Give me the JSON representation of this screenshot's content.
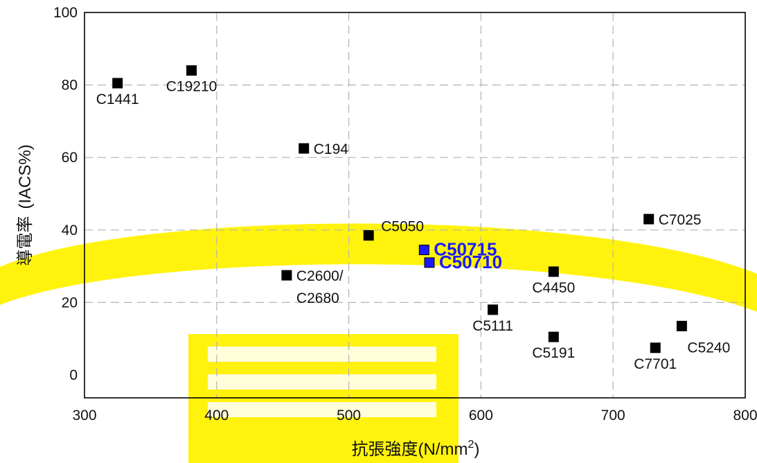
{
  "chart_data": {
    "type": "scatter",
    "xlabel": "抗張強度(N/mm²)",
    "xlabel_main": "抗張強度",
    "xlabel_unit_open": "(N/mm",
    "xlabel_unit_sup": "2",
    "xlabel_unit_close": ")",
    "ylabel": "導電率 (IACS%)",
    "ylabel_cjk": "導電率",
    "ylabel_unit": "(IACS%)",
    "xlim": [
      300,
      800
    ],
    "ylim": [
      0,
      100
    ],
    "x_ticks": [
      300,
      400,
      500,
      600,
      700,
      800
    ],
    "y_ticks": [
      0,
      20,
      40,
      60,
      80,
      100
    ],
    "grid": true,
    "points": [
      {
        "label": "C1441",
        "x": 325,
        "y": 80.5,
        "highlight": false,
        "anchor": "below"
      },
      {
        "label": "C19210",
        "x": 381,
        "y": 84,
        "highlight": false,
        "anchor": "below"
      },
      {
        "label": "C194",
        "x": 466,
        "y": 62.5,
        "highlight": false,
        "anchor": "right"
      },
      {
        "label": "C5050",
        "x": 515,
        "y": 38.5,
        "highlight": false,
        "anchor": "upper-right"
      },
      {
        "label": "C2600/\nC2680",
        "x": 453,
        "y": 27.5,
        "highlight": false,
        "anchor": "right"
      },
      {
        "label": "C50715",
        "x": 557,
        "y": 34.5,
        "highlight": true,
        "anchor": "right"
      },
      {
        "label": "C50710",
        "x": 561,
        "y": 31,
        "highlight": true,
        "anchor": "right"
      },
      {
        "label": "C4450",
        "x": 655,
        "y": 28.5,
        "highlight": false,
        "anchor": "below"
      },
      {
        "label": "C7025",
        "x": 727,
        "y": 43,
        "highlight": false,
        "anchor": "right"
      },
      {
        "label": "C5111",
        "x": 609,
        "y": 18,
        "highlight": false,
        "anchor": "below"
      },
      {
        "label": "C5191",
        "x": 655,
        "y": 10.5,
        "highlight": false,
        "anchor": "below"
      },
      {
        "label": "C5240",
        "x": 752,
        "y": 13.5,
        "highlight": false,
        "anchor": "lower-right"
      },
      {
        "label": "C7701",
        "x": 732,
        "y": 7.5,
        "highlight": false,
        "anchor": "below"
      }
    ]
  },
  "colors": {
    "marker": "#000000",
    "highlight_marker": "#1a1aff",
    "highlight_text": "#1a1aff",
    "grid": "#b3b3b3",
    "watermark": "#fff200"
  }
}
